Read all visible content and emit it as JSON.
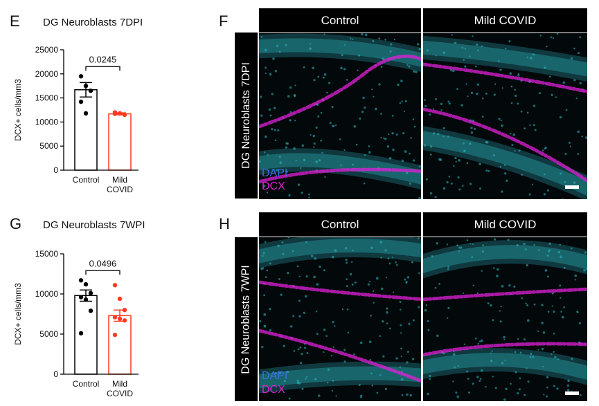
{
  "panels": {
    "E": "E",
    "F": "F",
    "G": "G",
    "H": "H"
  },
  "chart_data": [
    {
      "type": "bar",
      "title": "DG Neuroblasts 7DPI",
      "ylabel": "DCX+ cells/mm3",
      "xlabel": "",
      "categories": [
        "Control",
        "Mild COVID"
      ],
      "category_lines": [
        [
          "Control"
        ],
        [
          "Mild",
          "COVID"
        ]
      ],
      "values": [
        16700,
        11700
      ],
      "sem": [
        1500,
        200
      ],
      "points": [
        [
          19500,
          17500,
          16500,
          14200,
          11800
        ],
        [
          12000,
          11800,
          11500,
          11700
        ]
      ],
      "bar_colors": [
        "#000000",
        "#ff3b1f"
      ],
      "ylim": [
        0,
        25000
      ],
      "yticks": [
        0,
        5000,
        10000,
        15000,
        20000,
        25000
      ],
      "ytick_labels": [
        "0",
        "5000",
        "10000",
        "15000",
        "20000",
        "25000"
      ],
      "pvalue": "0.0245"
    },
    {
      "type": "bar",
      "title": "DG Neuroblasts 7WPI",
      "ylabel": "DCX+ cells/mm3",
      "xlabel": "",
      "categories": [
        "Control",
        "Mild COVID"
      ],
      "category_lines": [
        [
          "Control"
        ],
        [
          "Mild",
          "COVID"
        ]
      ],
      "values": [
        9800,
        7300
      ],
      "sem": [
        700,
        700
      ],
      "points": [
        [
          11700,
          11200,
          10100,
          9600,
          9300,
          7900,
          5100
        ],
        [
          11100,
          9400,
          8000,
          7100,
          6900,
          6700,
          4900
        ]
      ],
      "bar_colors": [
        "#000000",
        "#ff3b1f"
      ],
      "ylim": [
        0,
        15000
      ],
      "yticks": [
        0,
        5000,
        10000,
        15000
      ],
      "ytick_labels": [
        "0",
        "5000",
        "10000",
        "15000"
      ],
      "pvalue": "0.0496"
    }
  ],
  "micrographs": {
    "F": {
      "side_label": "DG Neuroblasts 7DPI",
      "headers": [
        "Control",
        "Mild COVID"
      ],
      "legend": [
        "DAPI",
        "DCX"
      ]
    },
    "H": {
      "side_label": "DG Neuroblasts 7WPI",
      "headers": [
        "Control",
        "Mild COVID"
      ],
      "legend": [
        "DAPI",
        "DCX"
      ]
    }
  },
  "colors": {
    "dapi": "#2fb8c4",
    "dcx": "#e020d8",
    "control_bar": "#000000",
    "covid_bar": "#ff3b1f"
  }
}
